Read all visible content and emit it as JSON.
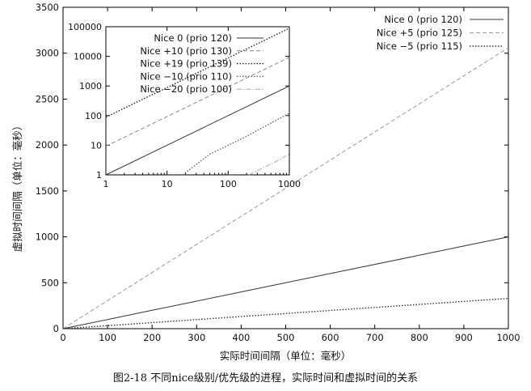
{
  "caption": "图2-18   不同nice级别/优先级的进程，实际时间和虚拟时间的关系",
  "chart_data": [
    {
      "type": "line",
      "xlabel": "实际时间间隔（单位：毫秒）",
      "ylabel": "虚拟时间间隔（单位：毫秒）",
      "xlim": [
        0,
        1000
      ],
      "ylim": [
        0,
        3500
      ],
      "xticks": [
        0,
        100,
        200,
        300,
        400,
        500,
        600,
        700,
        800,
        900,
        1000
      ],
      "yticks": [
        0,
        500,
        1000,
        1500,
        2000,
        2500,
        3000,
        3500
      ],
      "legend_position": "top-right",
      "series": [
        {
          "name": "Nice 0 (prio 120)",
          "style": "solid",
          "color": "#333333",
          "x": [
            0,
            100,
            200,
            300,
            400,
            500,
            600,
            700,
            800,
            900,
            1000
          ],
          "y": [
            0,
            100,
            200,
            300,
            400,
            500,
            600,
            700,
            800,
            900,
            1000
          ]
        },
        {
          "name": "Nice +5 (prio 125)",
          "style": "dashed",
          "color": "#999999",
          "x": [
            0,
            100,
            200,
            300,
            400,
            500,
            600,
            700,
            800,
            900,
            1000
          ],
          "y": [
            0,
            306,
            612,
            918,
            1224,
            1530,
            1836,
            2142,
            2448,
            2754,
            3060
          ]
        },
        {
          "name": "Nice −5 (prio 115)",
          "style": "dotted",
          "color": "#333333",
          "x": [
            0,
            100,
            200,
            300,
            400,
            500,
            600,
            700,
            800,
            900,
            1000
          ],
          "y": [
            0,
            33,
            66,
            99,
            132,
            165,
            198,
            231,
            264,
            297,
            330
          ]
        }
      ]
    },
    {
      "type": "line",
      "scale": "log-log",
      "xlim": [
        1,
        1000
      ],
      "ylim": [
        1,
        100000
      ],
      "xticks": [
        1,
        10,
        100,
        1000
      ],
      "yticks": [
        1,
        10,
        100,
        1000,
        10000,
        100000
      ],
      "legend_position": "top-left",
      "series": [
        {
          "name": "Nice 0 (prio 120)",
          "style": "solid",
          "color": "#333333",
          "x": [
            1,
            10,
            100,
            1000
          ],
          "y": [
            1,
            10,
            100,
            1000
          ]
        },
        {
          "name": "Nice +10 (prio 130)",
          "style": "dashed",
          "color": "#888888",
          "x": [
            1,
            10,
            100,
            1000
          ],
          "y": [
            9.3,
            93,
            930,
            9300
          ]
        },
        {
          "name": "Nice +19 (prio 139)",
          "style": "dotted",
          "color": "#222222",
          "x": [
            1,
            10,
            100,
            1000
          ],
          "y": [
            89,
            890,
            8900,
            89000
          ]
        },
        {
          "name": "Nice −10 (prio 110)",
          "style": "dotted",
          "color": "#666666",
          "x": [
            18,
            50,
            100,
            200,
            500,
            1000
          ],
          "y": [
            1,
            5,
            10,
            20,
            56,
            120
          ]
        },
        {
          "name": "Nice −20 (prio 100)",
          "style": "dash-dot",
          "color": "#aaaaaa",
          "x": [
            220,
            300,
            500,
            700,
            1000
          ],
          "y": [
            1,
            1.4,
            2.3,
            3.3,
            5
          ]
        }
      ]
    }
  ]
}
